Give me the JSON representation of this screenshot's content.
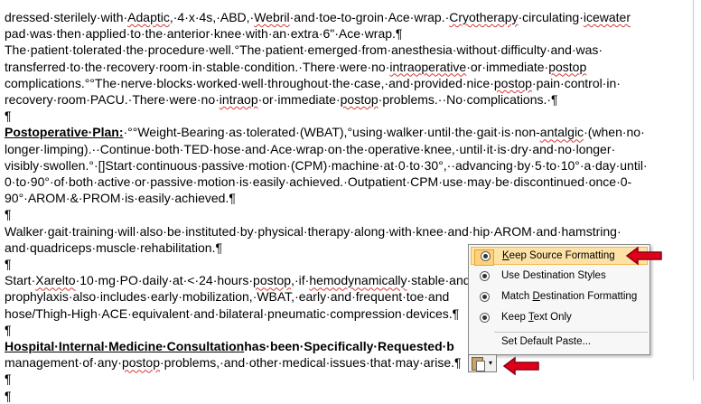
{
  "document": {
    "lines": [
      [
        {
          "t": "dressed·sterilely·with·"
        },
        {
          "t": "Adaptic",
          "s": "sq"
        },
        {
          "t": ",·4·x·4s,·ABD,·"
        },
        {
          "t": "Webril",
          "s": "sq"
        },
        {
          "t": "·and·toe-to-groin·Ace·wrap.·"
        },
        {
          "t": "Cryotherapy",
          "s": "sq"
        },
        {
          "t": "·circulating·"
        },
        {
          "t": "icewater",
          "s": "sq"
        }
      ],
      [
        {
          "t": "pad·was·then·applied·to·the·anterior·knee·with·an·extra·6\"·Ace·wrap.¶"
        }
      ],
      [
        {
          "t": "The·patient·tolerated·the·procedure·well.°The·patient·emerged·from·anesthesia·without·difficulty·and·was·"
        }
      ],
      [
        {
          "t": "transferred·to·the·recovery·room·in·stable·condition.·There·were·no·"
        },
        {
          "t": "intraoperative",
          "s": "sq"
        },
        {
          "t": "·or·immediate·"
        },
        {
          "t": "postop",
          "s": "sq"
        }
      ],
      [
        {
          "t": "complications.°°The·nerve·blocks·worked·well·throughout·the·case,·and·provided·nice·"
        },
        {
          "t": "postop",
          "s": "sq"
        },
        {
          "t": "·pain·control·in·"
        }
      ],
      [
        {
          "t": "recovery·room·PACU.·There·were·no·"
        },
        {
          "t": "intraop",
          "s": "sq"
        },
        {
          "t": "·or·immediate·"
        },
        {
          "t": "postop",
          "s": "sq"
        },
        {
          "t": "·problems.··No·complications.·¶"
        }
      ],
      [
        {
          "t": "¶"
        }
      ],
      [
        {
          "t": "Postoperative·Plan:",
          "s": "bu"
        },
        {
          "t": "·°°Weight-Bearing·as·tolerated·(WBAT),°using·walker·until·the·gait·is·non-"
        },
        {
          "t": "antalgic",
          "s": "sq"
        },
        {
          "t": "·(when·no·"
        }
      ],
      [
        {
          "t": "longer·limping).··Continue·both·TED·hose·and·Ace·wrap·on·the·operative·knee,·until·it·is·dry·and·no·longer·"
        }
      ],
      [
        {
          "t": "visibly·swollen.°·[]Start·continuous·passive·motion·(CPM)·machine·at·0·to·30°,··advancing·by·5·to·10°·a·day·until·"
        }
      ],
      [
        {
          "t": "0·to·90°·of·both·active·or·passive·motion·is·easily·achieved.·Outpatient·CPM·use·may·be·discontinued·once·0-"
        }
      ],
      [
        {
          "t": "90°·AROM·&·PROM·is·easily·achieved.¶"
        }
      ],
      [
        {
          "t": "¶"
        }
      ],
      [
        {
          "t": "Walker·gait·training·will·also·be·instituted·by·physical·therapy·along·with·knee·and·hip·AROM·and·hamstring·"
        }
      ],
      [
        {
          "t": "and·quadriceps·muscle·rehabilitation.¶"
        }
      ],
      [
        {
          "t": "¶"
        }
      ],
      [
        {
          "t": "Start·"
        },
        {
          "t": "Xarelto",
          "s": "sq"
        },
        {
          "t": "·10·mg·PO·daily·at·<·24·hours·"
        },
        {
          "t": "postop",
          "s": "sq"
        },
        {
          "t": ",·if·"
        },
        {
          "t": "hemodynamically",
          "s": "sq"
        },
        {
          "t": "·stable·and"
        }
      ],
      [
        {
          "t": "prophylaxis·also·includes·early·mobilization,·WBAT,·early·and·frequent·toe·and"
        }
      ],
      [
        {
          "t": "hose/Thigh-High·ACE·equivalent·and·bilateral·pneumatic·compression·devices.¶"
        }
      ],
      [
        {
          "t": "¶"
        }
      ],
      [
        {
          "t": "Hospital·Internal·Medicine·Consultation",
          "s": "bu"
        },
        {
          "t": "has·been·Specifically·Requested·b",
          "s": "b"
        }
      ],
      [
        {
          "t": "management·of·any·"
        },
        {
          "t": "postop",
          "s": "sq"
        },
        {
          "t": "·problems,·and·other·medical·issues·that·may·arise.¶"
        }
      ],
      [
        {
          "t": "¶"
        }
      ],
      [
        {
          "t": "¶"
        }
      ]
    ]
  },
  "paste_menu": {
    "options": [
      {
        "label": "Keep Source Formatting",
        "mnemonic": "K",
        "selected": true
      },
      {
        "label": "Use Destination Styles",
        "mnemonic": "",
        "selected": false
      },
      {
        "label": "Match Destination Formatting",
        "mnemonic": "D",
        "selected": false
      },
      {
        "label": "Keep Text Only",
        "mnemonic": "T",
        "selected": false
      }
    ],
    "default_paste_label": "Set Default Paste..."
  },
  "paste_button": {
    "icon": "clipboard-icon",
    "caret": "▾"
  },
  "colors": {
    "highlight": "#fde2a8",
    "arrow": "#e0001a",
    "squiggle": "#d23a3a"
  }
}
